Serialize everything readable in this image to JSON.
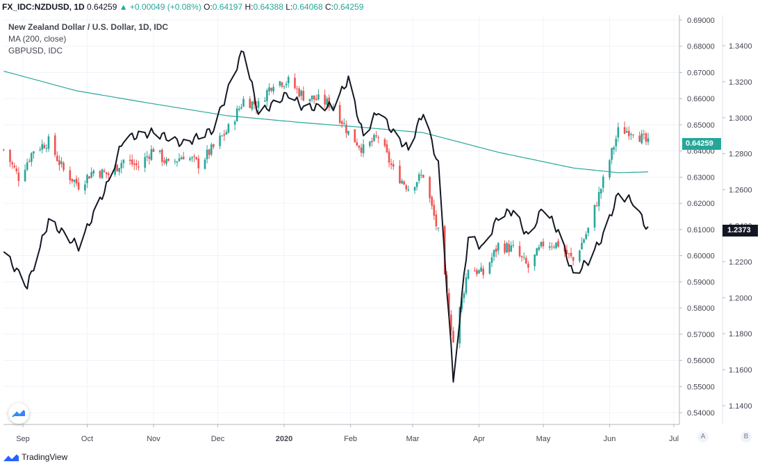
{
  "header": {
    "symbol": "FX_IDC:NZDUSD, 1D",
    "last": "0.64259",
    "change": "+0.00049 (+0.08%)",
    "o_label": "O:",
    "o_value": "0.64197",
    "h_label": "H:",
    "h_value": "0.64388",
    "l_label": "L:",
    "l_value": "0.64068",
    "c_label": "C:",
    "c_value": "0.64259"
  },
  "legend": {
    "title": "New Zealand Dollar / U.S. Dollar, 1D, IDC",
    "ma": "MA (200, close)",
    "compare": "GBPUSD, IDC"
  },
  "badges": {
    "price": "0.64259",
    "compare": "1.2373",
    "scale_a": "A",
    "scale_b": "B"
  },
  "footer": {
    "brand": "TradingView"
  },
  "colors": {
    "up": "#26a69a",
    "down": "#ef5350",
    "ma": "#26a69a",
    "compare": "#131722",
    "grid": "#f0f3fa",
    "axis_text": "#434651"
  },
  "icons": {
    "watermark": "tradingview-logo-icon",
    "footer_logo": "tradingview-logo-icon"
  },
  "chart_data": {
    "type": "candlestick",
    "title": "New Zealand Dollar / U.S. Dollar, 1D, IDC",
    "x_ticks": [
      "Sep",
      "Oct",
      "Nov",
      "Dec",
      "2020",
      "Feb",
      "Mar",
      "Apr",
      "May",
      "Jun",
      "Jul"
    ],
    "y_right_ticks": [
      "0.69000",
      "0.68000",
      "0.67000",
      "0.66000",
      "0.65000",
      "0.64000",
      "0.63000",
      "0.62000",
      "0.61000",
      "0.60000",
      "0.59000",
      "0.58000",
      "0.57000",
      "0.56000",
      "0.55000",
      "0.54000"
    ],
    "y_right2_ticks": [
      "1.3400",
      "1.3200",
      "1.3000",
      "1.2800",
      "1.2600",
      "1.2400",
      "1.2200",
      "1.2000",
      "1.1800",
      "1.1600",
      "1.1400"
    ],
    "ylim_nzdusd": [
      0.5375,
      0.6935
    ],
    "ylim_gbpusd": [
      1.13,
      1.35
    ],
    "grid": true,
    "series": [
      {
        "name": "NZDUSD",
        "kind": "close",
        "points": [
          [
            "2019-08-23",
            0.6405
          ],
          [
            "2019-08-30",
            0.63
          ],
          [
            "2019-09-06",
            0.6405
          ],
          [
            "2019-09-13",
            0.6435
          ],
          [
            "2019-09-20",
            0.6325
          ],
          [
            "2019-09-27",
            0.627
          ],
          [
            "2019-10-04",
            0.6325
          ],
          [
            "2019-10-11",
            0.631
          ],
          [
            "2019-10-18",
            0.6365
          ],
          [
            "2019-10-25",
            0.634
          ],
          [
            "2019-11-01",
            0.641
          ],
          [
            "2019-11-08",
            0.6345
          ],
          [
            "2019-11-15",
            0.6385
          ],
          [
            "2019-11-22",
            0.635
          ],
          [
            "2019-11-29",
            0.6413
          ],
          [
            "2019-12-06",
            0.6485
          ],
          [
            "2019-12-13",
            0.6595
          ],
          [
            "2019-12-20",
            0.6575
          ],
          [
            "2019-12-27",
            0.6665
          ],
          [
            "2020-01-03",
            0.6665
          ],
          [
            "2020-01-10",
            0.661
          ],
          [
            "2020-01-17",
            0.6595
          ],
          [
            "2020-01-24",
            0.6575
          ],
          [
            "2020-01-31",
            0.647
          ],
          [
            "2020-02-07",
            0.6405
          ],
          [
            "2020-02-14",
            0.6455
          ],
          [
            "2020-02-21",
            0.6325
          ],
          [
            "2020-02-28",
            0.626
          ],
          [
            "2020-03-06",
            0.631
          ],
          [
            "2020-03-13",
            0.6085
          ],
          [
            "2020-03-20",
            0.567
          ],
          [
            "2020-03-27",
            0.5955
          ],
          [
            "2020-04-03",
            0.593
          ],
          [
            "2020-04-10",
            0.604
          ],
          [
            "2020-04-17",
            0.6025
          ],
          [
            "2020-04-24",
            0.5955
          ],
          [
            "2020-05-01",
            0.6045
          ],
          [
            "2020-05-08",
            0.6045
          ],
          [
            "2020-05-15",
            0.598
          ],
          [
            "2020-05-22",
            0.61
          ],
          [
            "2020-05-29",
            0.6285
          ],
          [
            "2020-06-05",
            0.6475
          ],
          [
            "2020-06-12",
            0.648
          ],
          [
            "2020-06-19",
            0.6426
          ]
        ]
      },
      {
        "name": "MA (200, close)",
        "points": [
          [
            "2019-08-23",
            0.6705
          ],
          [
            "2019-09-26",
            0.663
          ],
          [
            "2019-11-01",
            0.658
          ],
          [
            "2019-12-05",
            0.6535
          ],
          [
            "2020-01-10",
            0.6508
          ],
          [
            "2020-02-07",
            0.649
          ],
          [
            "2020-03-06",
            0.647
          ],
          [
            "2020-04-10",
            0.6395
          ],
          [
            "2020-05-15",
            0.6335
          ],
          [
            "2020-06-05",
            0.6317
          ],
          [
            "2020-06-19",
            0.632
          ]
        ]
      },
      {
        "name": "GBPUSD, IDC",
        "points": [
          [
            "2019-08-23",
            1.2255
          ],
          [
            "2019-09-03",
            1.2065
          ],
          [
            "2019-09-13",
            1.243
          ],
          [
            "2019-09-27",
            1.2285
          ],
          [
            "2019-10-11",
            1.2645
          ],
          [
            "2019-10-18",
            1.2885
          ],
          [
            "2019-11-01",
            1.292
          ],
          [
            "2019-11-15",
            1.2855
          ],
          [
            "2019-11-29",
            1.2935
          ],
          [
            "2019-12-13",
            1.3385
          ],
          [
            "2019-12-20",
            1.302
          ],
          [
            "2020-01-03",
            1.3135
          ],
          [
            "2020-01-10",
            1.3055
          ],
          [
            "2020-01-24",
            1.3065
          ],
          [
            "2020-01-31",
            1.3215
          ],
          [
            "2020-02-07",
            1.2895
          ],
          [
            "2020-02-14",
            1.3045
          ],
          [
            "2020-02-21",
            1.2915
          ],
          [
            "2020-02-28",
            1.2825
          ],
          [
            "2020-03-06",
            1.3035
          ],
          [
            "2020-03-13",
            1.2735
          ],
          [
            "2020-03-20",
            1.1545
          ],
          [
            "2020-03-27",
            1.2345
          ],
          [
            "2020-04-03",
            1.2275
          ],
          [
            "2020-04-10",
            1.245
          ],
          [
            "2020-04-17",
            1.2485
          ],
          [
            "2020-04-24",
            1.2335
          ],
          [
            "2020-05-01",
            1.2505
          ],
          [
            "2020-05-08",
            1.237
          ],
          [
            "2020-05-15",
            1.2125
          ],
          [
            "2020-05-22",
            1.2205
          ],
          [
            "2020-05-29",
            1.2345
          ],
          [
            "2020-06-05",
            1.2575
          ],
          [
            "2020-06-12",
            1.2535
          ],
          [
            "2020-06-19",
            1.2373
          ]
        ]
      }
    ]
  }
}
